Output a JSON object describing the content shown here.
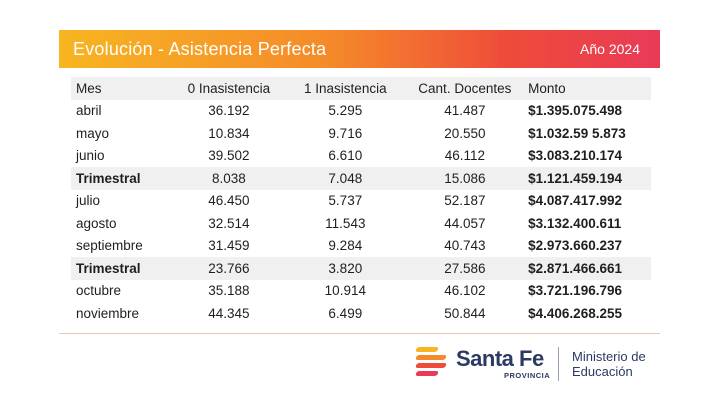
{
  "header": {
    "title": "Evolución - Asistencia Perfecta",
    "year": "Año 2024"
  },
  "table": {
    "columns": [
      "Mes",
      "0 Inasistencia",
      "1 Inasistencia",
      "Cant. Docentes",
      "Monto"
    ],
    "rows": [
      {
        "mes": "abril",
        "in0": "36.192",
        "in1": "5.295",
        "cant": "41.487",
        "monto": "$1.395.075.498",
        "summary": false
      },
      {
        "mes": "mayo",
        "in0": "10.834",
        "in1": "9.716",
        "cant": "20.550",
        "monto": "$1.032.59 5.873",
        "summary": false
      },
      {
        "mes": "junio",
        "in0": "39.502",
        "in1": "6.610",
        "cant": "46.112",
        "monto": "$3.083.210.174",
        "summary": false
      },
      {
        "mes": "Trimestral",
        "in0": "8.038",
        "in1": "7.048",
        "cant": "15.086",
        "monto": "$1.121.459.194",
        "summary": true
      },
      {
        "mes": "julio",
        "in0": "46.450",
        "in1": "5.737",
        "cant": "52.187",
        "monto": "$4.087.417.992",
        "summary": false
      },
      {
        "mes": "agosto",
        "in0": "32.514",
        "in1": "11.543",
        "cant": "44.057",
        "monto": "$3.132.400.611",
        "summary": false
      },
      {
        "mes": "septiembre",
        "in0": "31.459",
        "in1": "9.284",
        "cant": "40.743",
        "monto": "$2.973.660.237",
        "summary": false
      },
      {
        "mes": "Trimestral",
        "in0": "23.766",
        "in1": "3.820",
        "cant": "27.586",
        "monto": "$2.871.466.661",
        "summary": true
      },
      {
        "mes": "octubre",
        "in0": "35.188",
        "in1": "10.914",
        "cant": "46.102",
        "monto": "$3.721.196.796",
        "summary": false
      },
      {
        "mes": "noviembre",
        "in0": "44.345",
        "in1": "6.499",
        "cant": "50.844",
        "monto": "$4.406.268.255",
        "summary": false
      }
    ]
  },
  "footer": {
    "logo_name": "Santa Fe",
    "logo_sub": "PROVINCIA",
    "ministry_line1": "Ministerio de",
    "ministry_line2": "Educación",
    "logo_colors": [
      "#f7b521",
      "#f58a2a",
      "#ee4b3a",
      "#e93a57"
    ]
  },
  "colors": {
    "banner_start": "#f7b521",
    "banner_end": "#e93a57",
    "row_highlight": "#f0f0f0",
    "brand_text": "#2c3a63"
  }
}
